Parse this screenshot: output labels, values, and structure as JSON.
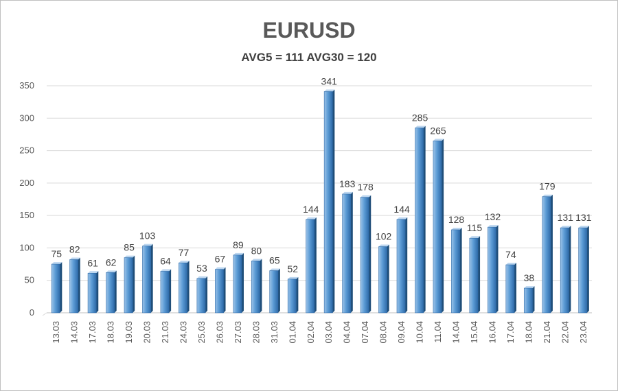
{
  "chart_data": {
    "type": "bar",
    "title": "EURUSD",
    "subtitle": "AVG5 = 111 AVG30 = 120",
    "categories": [
      "13.03",
      "14.03",
      "17.03",
      "18.03",
      "19.03",
      "20.03",
      "21.03",
      "24.03",
      "25.03",
      "26.03",
      "27.03",
      "28.03",
      "31.03",
      "01.04",
      "02.04",
      "03.04",
      "04.04",
      "07.04",
      "08.04",
      "09.04",
      "10.04",
      "11.04",
      "14.04",
      "15.04",
      "16.04",
      "17.04",
      "18.04",
      "21.04",
      "22.04",
      "23.04"
    ],
    "values": [
      75,
      82,
      61,
      62,
      85,
      103,
      64,
      77,
      53,
      67,
      89,
      80,
      65,
      52,
      144,
      341,
      183,
      178,
      102,
      144,
      285,
      265,
      128,
      115,
      132,
      74,
      38,
      179,
      131,
      131
    ],
    "yticks": [
      0,
      50,
      100,
      150,
      200,
      250,
      300,
      350
    ],
    "ylim": [
      0,
      350
    ],
    "grid": true,
    "bar_color": "#5b9bd5"
  }
}
